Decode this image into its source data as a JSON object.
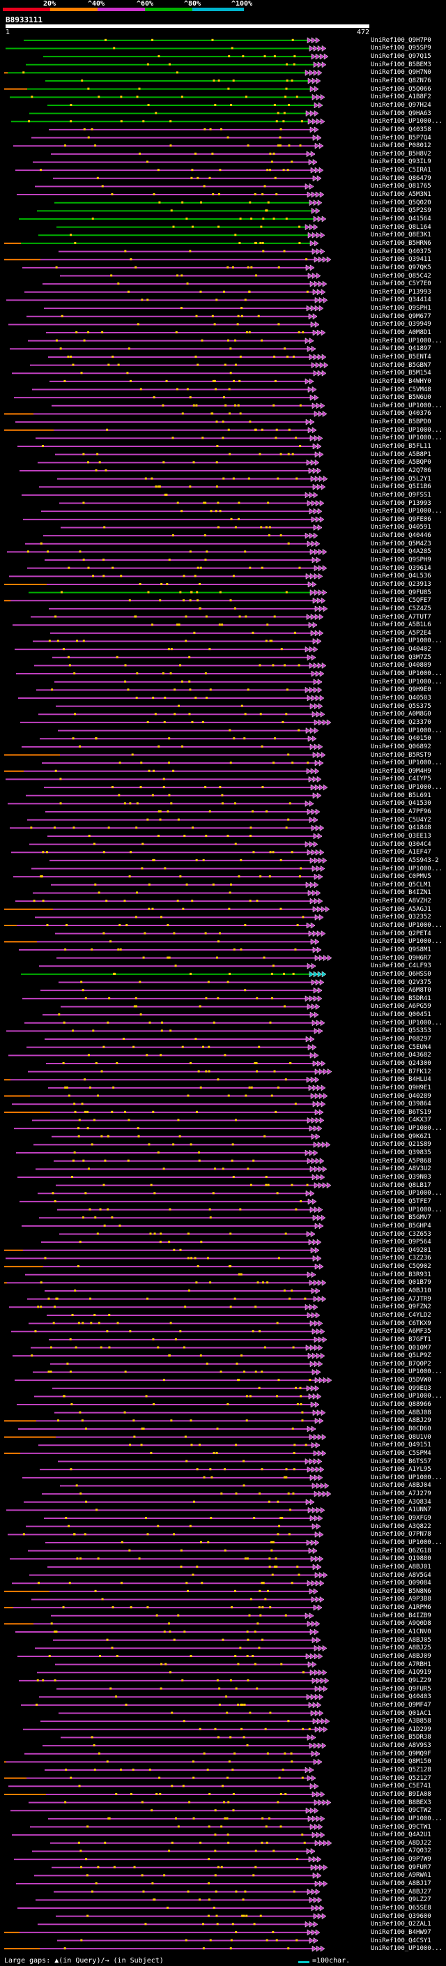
{
  "scale": {
    "labels": [
      "20%",
      "^40%",
      "^60%",
      "^80%",
      "^100%"
    ],
    "colors": [
      "#e8001c",
      "#ff8000",
      "#cc33cc",
      "#00b000",
      "#00b4cc"
    ]
  },
  "query": {
    "id": "B8933111",
    "start": "1",
    "end": "472"
  },
  "colors": {
    "purple": "#c040c0",
    "green": "#00b000",
    "orange": "#ff8000",
    "cyan": "#00c8c8",
    "yellow": "#ffcc00",
    "white": "#ffffff"
  },
  "hits": [
    "UniRef100_Q9H7P0",
    "UniRef100_Q95SP9",
    "UniRef100_Q97Q15",
    "UniRef100_B5BEM3",
    "UniRef100_Q9H7N0",
    "UniRef100_Q8ZN76",
    "UniRef100_Q5Q066",
    "UniRef100_A1B8F2",
    "UniRef100_Q97H24",
    "UniRef100_Q9HA63",
    "UniRef100_UP1000...",
    "UniRef100_Q40358",
    "UniRef100_B5P7Q4",
    "UniRef100_P08012",
    "UniRef100_B5H8V2",
    "UniRef100_Q93IL9",
    "UniRef100_C5IRA1",
    "UniRef100_Q86479",
    "UniRef100_Q81765",
    "UniRef100_A5M3N1",
    "UniRef100_Q5Q020",
    "UniRef100_Q5P2S9",
    "UniRef100_Q41564",
    "UniRef100_Q8L164",
    "UniRef100_Q8E3K1",
    "UniRef100_B5HRN6",
    "UniRef100_Q40375",
    "UniRef100_Q39411",
    "UniRef100_Q97QK5",
    "UniRef100_Q85C42",
    "UniRef100_C5Y7E0",
    "UniRef100_P13993",
    "UniRef100_Q34414",
    "UniRef100_Q9SPH1",
    "UniRef100_Q9M677",
    "UniRef100_Q39949",
    "UniRef100_A0M8D1",
    "UniRef100_UP1000...",
    "UniRef100_Q41897",
    "UniRef100_B5ENT4",
    "UniRef100_B5GBN7",
    "UniRef100_B5M154",
    "UniRef100_B4WHY0",
    "UniRef100_C5VM48",
    "UniRef100_B5N6U0",
    "UniRef100_UP1000...",
    "UniRef100_Q40376",
    "UniRef100_B5BPD0",
    "UniRef100_UP1000...",
    "UniRef100_UP1000...",
    "UniRef100_B5FL11",
    "UniRef100_A5B8P1",
    "UniRef100_A5BQP0",
    "UniRef100_A2Q706",
    "UniRef100_Q5L2Y1",
    "UniRef100_Q5I1B6",
    "UniRef100_Q9FSS1",
    "UniRef100_P13993",
    "UniRef100_UP1000...",
    "UniRef100_Q9FE06",
    "UniRef100_Q40591",
    "UniRef100_Q40446",
    "UniRef100_Q5M4Z3",
    "UniRef100_Q4A285",
    "UniRef100_Q9SPH9",
    "UniRef100_Q39614",
    "UniRef100_Q4L536",
    "UniRef100_Q23913",
    "UniRef100_Q9FU85",
    "UniRef100_C5QFE7",
    "UniRef100_C5Z4Z5",
    "UniRef100_A7TUT7",
    "UniRef100_A5B1L6",
    "UniRef100_A5P2E4",
    "UniRef100_UP1000...",
    "UniRef100_Q40402",
    "UniRef100_Q3M7Z5",
    "UniRef100_Q40809",
    "UniRef100_UP1000...",
    "UniRef100_UP1000...",
    "UniRef100_Q9H9E0",
    "UniRef100_Q40503",
    "UniRef100_Q5S375",
    "UniRef100_A0M8G0",
    "UniRef100_Q23370",
    "UniRef100_UP1000...",
    "UniRef100_Q40150",
    "UniRef100_Q06892",
    "UniRef100_B5RST9",
    "UniRef100_UP1000...",
    "UniRef100_Q9M4H9",
    "UniRef100_C4IYP5",
    "UniRef100_UP1000...",
    "UniRef100_B5L691",
    "UniRef100_Q41530",
    "UniRef100_A7PF96",
    "UniRef100_C5U4Y2",
    "UniRef100_Q41848",
    "UniRef100_Q3EE13",
    "UniRef100_Q304C4",
    "UniRef100_A1EF47",
    "UniRef100_A5S943-2",
    "UniRef100_UP1000...",
    "UniRef100_C0PMV5",
    "UniRef100_Q5CLM1",
    "UniRef100_B4IZN1",
    "UniRef100_A8VZH2",
    "UniRef100_A5AGJ1",
    "UniRef100_Q32352",
    "UniRef100_UP1000...",
    "UniRef100_Q2PET4",
    "UniRef100_UP1000...",
    "UniRef100_Q9S8M1",
    "UniRef100_Q9H6R7",
    "UniRef100_C4LF93",
    "UniRef100_Q6HSS0",
    "UniRef100_Q2V375",
    "UniRef100_A6M8T0",
    "UniRef100_B5DR41",
    "UniRef100_A6PG59",
    "UniRef100_Q00451",
    "UniRef100_UP1000...",
    "UniRef100_Q5S353",
    "UniRef100_P08297",
    "UniRef100_C5EUN4",
    "UniRef100_Q43682",
    "UniRef100_Q24300",
    "UniRef100_B7FK12",
    "UniRef100_B4HLU4",
    "UniRef100_Q9H9E1",
    "UniRef100_Q40289",
    "UniRef100_Q39864",
    "UniRef100_B6TS19",
    "UniRef100_C4KX37",
    "UniRef100_UP1000...",
    "UniRef100_Q9K6Z1",
    "UniRef100_Q21S89",
    "UniRef100_Q39835",
    "UniRef100_A5P868",
    "UniRef100_A8V3U2",
    "UniRef100_Q39N03",
    "UniRef100_Q8LB17",
    "UniRef100_UP1000...",
    "UniRef100_Q5TFE7",
    "UniRef100_UP1000...",
    "UniRef100_B5GMV7",
    "UniRef100_B5GHP4",
    "UniRef100_C3Z653",
    "UniRef100_Q9P564",
    "UniRef100_Q49201",
    "UniRef100_C3Z236",
    "UniRef100_C5Q902",
    "UniRef100_B3R931",
    "UniRef100_Q01B79",
    "UniRef100_A0BJ10",
    "UniRef100_A7JTR9",
    "UniRef100_Q9FZN2",
    "UniRef100_C4YLD2",
    "UniRef100_C6TKX9",
    "UniRef100_A6MF35",
    "UniRef100_B7GFT1",
    "UniRef100_Q010M7",
    "UniRef100_Q5LP9Z",
    "UniRef100_B7Q0P2",
    "UniRef100_UP1000...",
    "UniRef100_Q5DVW0",
    "UniRef100_Q99EQ3",
    "UniRef100_UP1000...",
    "UniRef100_Q88966",
    "UniRef100_A8BJ08",
    "UniRef100_A8BJ29",
    "UniRef100_B0CD60",
    "UniRef100_Q8U1V0",
    "UniRef100_Q49151",
    "UniRef100_C5SPM4",
    "UniRef100_B6TS57",
    "UniRef100_A1YL95",
    "UniRef100_UP1000...",
    "UniRef100_A8BJ04",
    "UniRef100_A7J279",
    "UniRef100_A3Q834",
    "UniRef100_A1UNN7",
    "UniRef100_Q9XFG9",
    "UniRef100_A3Q822",
    "UniRef100_Q7PN78",
    "UniRef100_UP1000...",
    "UniRef100_Q6ZG18",
    "UniRef100_Q19880",
    "UniRef100_A8BJ01",
    "UniRef100_A8V5G4",
    "UniRef100_Q09084",
    "UniRef100_B5N8N6",
    "UniRef100_A9P3B8",
    "UniRef100_A1RPM6",
    "UniRef100_B4IZB9",
    "UniRef100_A9Q0D8",
    "UniRef100_A1CNV0",
    "UniRef100_A8BJ05",
    "UniRef100_A8BJ25",
    "UniRef100_A8BJ09",
    "UniRef100_A7RBH1",
    "UniRef100_A1Q919",
    "UniRef100_Q9LZ29",
    "UniRef100_Q9FUR5",
    "UniRef100_Q40403",
    "UniRef100_Q9MF47",
    "UniRef100_Q01AC1",
    "UniRef100_A3B858",
    "UniRef100_A1D299",
    "UniRef100_B5DR38",
    "UniRef100_A8V9S3",
    "UniRef100_Q9MQ9F",
    "UniRef100_Q8M150",
    "UniRef100_Q5Z128",
    "UniRef100_Q52127",
    "UniRef100_C5E741",
    "UniRef100_B9IA08",
    "UniRef100_B8BEX3",
    "UniRef100_Q9CTW2",
    "UniRef100_UP1000...",
    "UniRef100_Q9CTW1",
    "UniRef100_Q4A2U1",
    "UniRef100_A8DJ22",
    "UniRef100_A7Q032",
    "UniRef100_Q9P7W9",
    "UniRef100_Q9FUR7",
    "UniRef100_A9RWA1",
    "UniRef100_A8BJ17",
    "UniRef100_A8BJ27",
    "UniRef100_Q9LZ27",
    "UniRef100_Q65SE8",
    "UniRef100_Q39600",
    "UniRef100_Q2ZAL1",
    "UniRef100_B4HW97",
    "UniRef100_Q4CSY1",
    "UniRef100_UP1000..."
  ],
  "footer": {
    "gaps": "Large gaps: ▲(in Query)/→ (in Subject)",
    "legend": "=100char."
  }
}
